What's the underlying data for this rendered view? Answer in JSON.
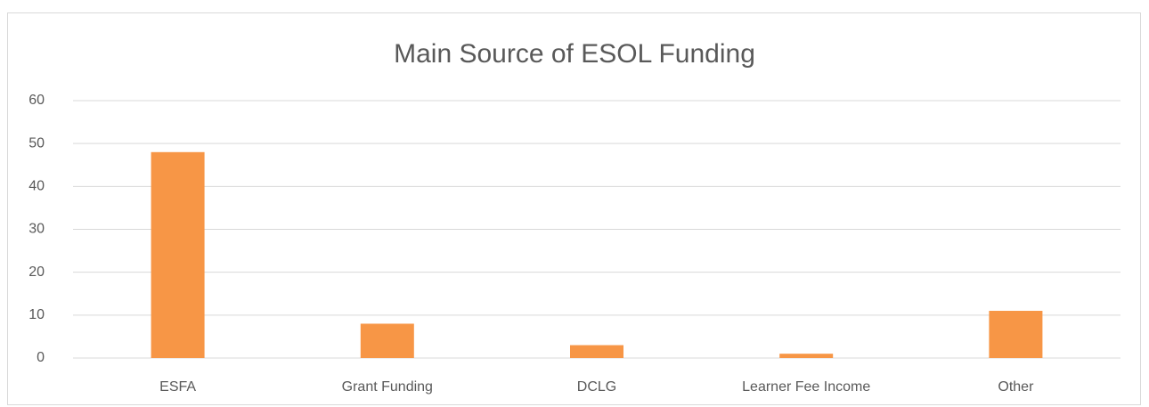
{
  "chart_data": {
    "type": "bar",
    "title": "Main Source of ESOL Funding",
    "categories": [
      "ESFA",
      "Grant Funding",
      "DCLG",
      "Learner Fee Income",
      "Other"
    ],
    "values": [
      48,
      8,
      3,
      1,
      11
    ],
    "color": "#f79646",
    "ylim": [
      0,
      60
    ],
    "yticks": [
      0,
      10,
      20,
      30,
      40,
      50,
      60
    ],
    "grid": true
  }
}
